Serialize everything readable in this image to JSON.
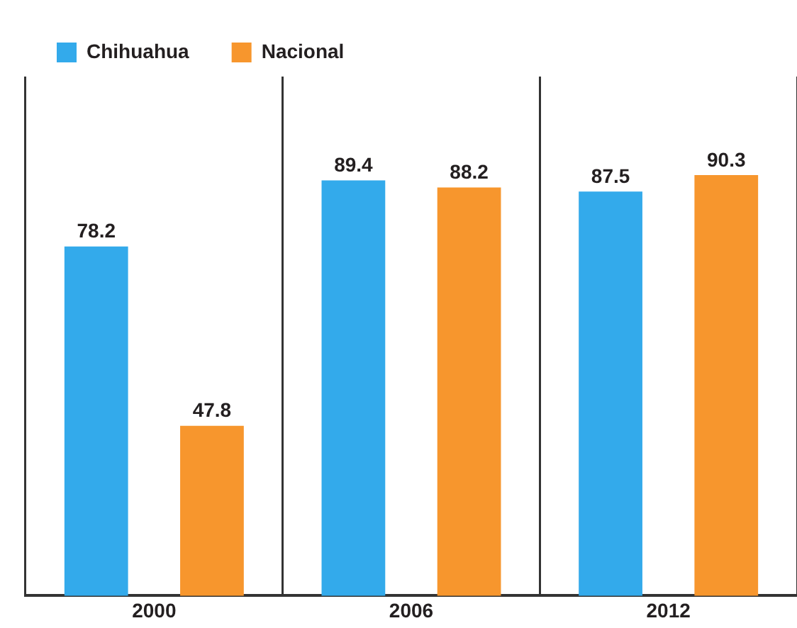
{
  "chart_data": {
    "type": "bar",
    "categories": [
      "2000",
      "2006",
      "2012"
    ],
    "series": [
      {
        "name": "Chihuahua",
        "color": "#33aaeb",
        "values": [
          78.2,
          89.4,
          87.5
        ]
      },
      {
        "name": "Nacional",
        "color": "#f7962d",
        "values": [
          47.8,
          88.2,
          90.3
        ]
      }
    ],
    "ylim": [
      19,
      107
    ],
    "tick_labels": "x",
    "grid": "x",
    "legend": "top left",
    "data_labels": true
  }
}
